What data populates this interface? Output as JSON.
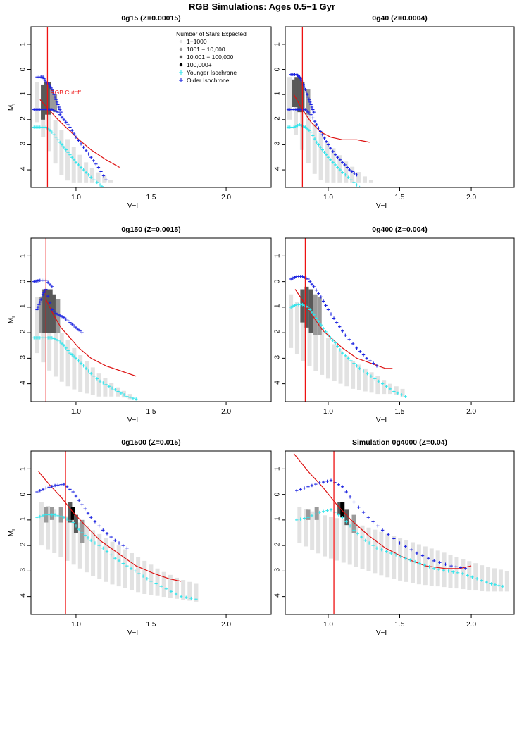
{
  "title": "RGB Simulations: Ages 0.5−1 Gyr",
  "colors": {
    "light": "#e2e2e2",
    "medium": "#9a9a9a",
    "dark": "#595959",
    "black": "#000000",
    "younger": "#33e5ec",
    "older": "#1a22e0",
    "cutoff": "#ee1111",
    "fit": "#dd1111"
  },
  "legend": {
    "title": "Number of Stars Expected",
    "items": [
      "1−1000",
      "1001 − 10,000",
      "10,001 − 100,000",
      "100,000+",
      "Younger Isochrone",
      "Older Isochrone"
    ]
  },
  "cutoff_label": "RGB Cutoff",
  "chart_data": [
    {
      "type": "scatter",
      "title": "0g15 (Z=0.00015)",
      "xlabel": "V−I",
      "ylabel": "M_I",
      "xlim": [
        0.7,
        2.3
      ],
      "ylim": [
        1.7,
        -4.7
      ],
      "xticks": [
        "1.0",
        "1.5",
        "2.0"
      ],
      "yticks": [
        "-4",
        "-3",
        "-2",
        "-1",
        "0",
        "1"
      ],
      "cutoff": 0.81,
      "band": {
        "x": [
          0.74,
          1.23
        ],
        "bottom": [
          -0.5,
          -1.2,
          -1.9,
          -2.4,
          -2.9,
          -3.3,
          -3.7,
          -4.0,
          -4.2,
          -4.4
        ],
        "top": [
          -2.1,
          -2.9,
          -3.6,
          -4.2,
          -4.5,
          -4.5,
          -4.5,
          -4.5,
          -4.5,
          -4.5
        ]
      },
      "dense": [
        [
          0.78,
          -0.6,
          -2.0,
          2
        ],
        [
          0.8,
          -0.5,
          -1.8,
          2
        ],
        [
          0.82,
          -0.5,
          -1.8,
          2
        ],
        [
          0.84,
          -0.8,
          -1.6,
          1
        ],
        [
          0.86,
          -1.0,
          -1.7,
          1
        ]
      ],
      "younger": {
        "x": [
          0.72,
          0.76,
          0.8,
          0.84,
          0.88,
          0.92,
          0.96,
          1.0,
          1.05,
          1.1,
          1.16,
          1.2
        ],
        "y": [
          -2.3,
          -2.3,
          -2.3,
          -2.5,
          -2.8,
          -3.1,
          -3.4,
          -3.7,
          -4.0,
          -4.3,
          -4.6,
          -4.8
        ]
      },
      "older": {
        "x": [
          0.72,
          0.76,
          0.8,
          0.84,
          0.88,
          0.92,
          0.96,
          1.0,
          1.05,
          1.1,
          1.15,
          1.2
        ],
        "y": [
          -1.6,
          -1.6,
          -1.6,
          -1.6,
          -1.7,
          -2.0,
          -2.3,
          -2.7,
          -3.1,
          -3.5,
          -3.9,
          -4.4
        ]
      },
      "older_lower": {
        "x": [
          0.74,
          0.78,
          0.8,
          0.82,
          0.84,
          0.86,
          0.88,
          0.9
        ],
        "y": [
          -0.3,
          -0.3,
          -0.5,
          -0.6,
          -0.8,
          -1.1,
          -1.4,
          -1.7
        ]
      },
      "fit": {
        "x": [
          0.76,
          0.82,
          0.88,
          0.95,
          1.02,
          1.1,
          1.2,
          1.29
        ],
        "y": [
          -1.2,
          -1.6,
          -2.0,
          -2.4,
          -2.8,
          -3.2,
          -3.6,
          -3.9
        ]
      },
      "legend": true
    },
    {
      "type": "scatter",
      "title": "0g40 (Z=0.0004)",
      "xlabel": "V−I",
      "ylabel": "",
      "xlim": [
        0.7,
        2.3
      ],
      "ylim": [
        1.7,
        -4.7
      ],
      "xticks": [
        "1.0",
        "1.5",
        "2.0"
      ],
      "yticks": [
        "-4",
        "-3",
        "-2",
        "-1",
        "0",
        "1"
      ],
      "cutoff": 0.82,
      "band": {
        "x": [
          0.73,
          1.3
        ],
        "bottom": [
          -0.3,
          -1.0,
          -1.7,
          -2.3,
          -2.8,
          -3.2,
          -3.6,
          -3.9,
          -4.2,
          -4.4
        ],
        "top": [
          -2.0,
          -2.9,
          -3.7,
          -4.3,
          -4.5,
          -4.5,
          -4.5,
          -4.5,
          -4.5,
          -4.5
        ]
      },
      "dense": [
        [
          0.76,
          -0.4,
          -1.5,
          2
        ],
        [
          0.78,
          -0.3,
          -1.5,
          2
        ],
        [
          0.8,
          -0.3,
          -1.7,
          2
        ],
        [
          0.82,
          -0.5,
          -1.7,
          2
        ],
        [
          0.86,
          -0.8,
          -1.8,
          1
        ]
      ],
      "younger": {
        "x": [
          0.72,
          0.76,
          0.8,
          0.84,
          0.88,
          0.92,
          0.96,
          1.0,
          1.05,
          1.1,
          1.16,
          1.22,
          1.27
        ],
        "y": [
          -2.3,
          -2.3,
          -2.2,
          -2.3,
          -2.5,
          -2.9,
          -3.2,
          -3.5,
          -3.8,
          -4.1,
          -4.4,
          -4.7,
          -4.8
        ]
      },
      "older": {
        "x": [
          0.72,
          0.76,
          0.8,
          0.84,
          0.88,
          0.92,
          0.96,
          1.0,
          1.05,
          1.1,
          1.15,
          1.2
        ],
        "y": [
          -1.6,
          -1.6,
          -1.6,
          -1.6,
          -1.8,
          -2.2,
          -2.6,
          -3.0,
          -3.4,
          -3.7,
          -4.0,
          -4.2
        ]
      },
      "older_lower": {
        "x": [
          0.74,
          0.78,
          0.8,
          0.82,
          0.84,
          0.86,
          0.88,
          0.9
        ],
        "y": [
          -0.2,
          -0.2,
          -0.3,
          -0.5,
          -0.8,
          -1.1,
          -1.4,
          -1.7
        ]
      },
      "fit": {
        "x": [
          0.76,
          0.82,
          0.88,
          0.95,
          1.02,
          1.1,
          1.2,
          1.29
        ],
        "y": [
          -1.0,
          -1.6,
          -2.1,
          -2.5,
          -2.7,
          -2.8,
          -2.8,
          -2.9
        ]
      },
      "legend": false
    },
    {
      "type": "scatter",
      "title": "0g150 (Z=0.0015)",
      "xlabel": "V−I",
      "ylabel": "M_I",
      "xlim": [
        0.7,
        2.3
      ],
      "ylim": [
        1.7,
        -4.7
      ],
      "xticks": [
        "1.0",
        "1.5",
        "2.0"
      ],
      "yticks": [
        "-4",
        "-3",
        "-2",
        "-1",
        "0",
        "1"
      ],
      "cutoff": 0.8,
      "band": {
        "x": [
          0.74,
          1.36
        ],
        "bottom": [
          -0.6,
          -1.2,
          -1.8,
          -2.3,
          -2.8,
          -3.2,
          -3.6,
          -3.9,
          -4.2,
          -4.4
        ],
        "top": [
          -2.8,
          -3.4,
          -3.8,
          -4.1,
          -4.3,
          -4.4,
          -4.5,
          -4.5,
          -4.5,
          -4.6
        ]
      },
      "dense": [
        [
          0.77,
          -0.6,
          -2.0,
          1
        ],
        [
          0.79,
          -0.3,
          -2.0,
          2
        ],
        [
          0.81,
          -0.3,
          -2.0,
          2
        ],
        [
          0.83,
          -0.3,
          -2.0,
          2
        ],
        [
          0.85,
          -0.5,
          -2.0,
          2
        ],
        [
          0.88,
          -0.7,
          -2.0,
          1
        ]
      ],
      "younger": {
        "x": [
          0.72,
          0.76,
          0.8,
          0.84,
          0.88,
          0.92,
          0.96,
          1.0,
          1.05,
          1.1,
          1.16,
          1.22,
          1.28,
          1.34,
          1.4
        ],
        "y": [
          -2.2,
          -2.2,
          -2.2,
          -2.2,
          -2.3,
          -2.5,
          -2.8,
          -3.0,
          -3.3,
          -3.6,
          -3.9,
          -4.1,
          -4.3,
          -4.5,
          -4.6
        ]
      },
      "older": {
        "x": [
          0.74,
          0.76,
          0.78,
          0.8,
          0.84,
          0.88,
          0.92,
          0.96,
          1.0,
          1.04
        ],
        "y": [
          -1.1,
          -0.8,
          -0.5,
          -0.3,
          -1.1,
          -1.3,
          -1.4,
          -1.6,
          -1.8,
          -2.0
        ]
      },
      "older_lower": {
        "x": [
          0.72,
          0.76,
          0.8,
          0.84
        ],
        "y": [
          0.0,
          0.05,
          0.05,
          -0.2
        ]
      },
      "fit": {
        "x": [
          0.8,
          0.85,
          0.9,
          0.96,
          1.02,
          1.1,
          1.2,
          1.3,
          1.4
        ],
        "y": [
          -0.7,
          -1.3,
          -1.8,
          -2.2,
          -2.6,
          -3.0,
          -3.3,
          -3.5,
          -3.7
        ]
      },
      "legend": false
    },
    {
      "type": "scatter",
      "title": "0g400 (Z=0.004)",
      "xlabel": "V−I",
      "ylabel": "",
      "xlim": [
        0.7,
        2.3
      ],
      "ylim": [
        1.7,
        -4.7
      ],
      "xticks": [
        "1.0",
        "1.5",
        "2.0"
      ],
      "yticks": [
        "-4",
        "-3",
        "-2",
        "-1",
        "0",
        "1"
      ],
      "cutoff": 0.84,
      "band": {
        "x": [
          0.74,
          1.52
        ],
        "bottom": [
          -0.5,
          -1.1,
          -1.7,
          -2.2,
          -2.7,
          -3.1,
          -3.4,
          -3.7,
          -4.0,
          -4.2
        ],
        "top": [
          -2.6,
          -3.1,
          -3.5,
          -3.8,
          -4.0,
          -4.2,
          -4.3,
          -4.4,
          -4.4,
          -4.5
        ]
      },
      "dense": [
        [
          0.82,
          -0.3,
          -1.6,
          2
        ],
        [
          0.85,
          -0.2,
          -1.8,
          2
        ],
        [
          0.88,
          -0.3,
          -2.0,
          2
        ],
        [
          0.91,
          -0.5,
          -2.1,
          1
        ],
        [
          0.94,
          -0.6,
          -2.1,
          1
        ]
      ],
      "younger": {
        "x": [
          0.74,
          0.78,
          0.82,
          0.86,
          0.9,
          0.95,
          1.0,
          1.05,
          1.1,
          1.16,
          1.22,
          1.3,
          1.38,
          1.46,
          1.54
        ],
        "y": [
          -1.0,
          -0.9,
          -0.9,
          -1.0,
          -1.3,
          -1.7,
          -2.1,
          -2.4,
          -2.8,
          -3.1,
          -3.4,
          -3.7,
          -4.0,
          -4.3,
          -4.5
        ]
      },
      "older": {
        "x": [
          0.74,
          0.78,
          0.82,
          0.86,
          0.9,
          0.95,
          1.0,
          1.06,
          1.12,
          1.2,
          1.27,
          1.34
        ],
        "y": [
          0.1,
          0.2,
          0.2,
          0.1,
          -0.2,
          -0.6,
          -1.1,
          -1.6,
          -2.1,
          -2.6,
          -3.0,
          -3.3
        ]
      },
      "older_lower": {
        "x": [],
        "y": []
      },
      "fit": {
        "x": [
          0.77,
          0.84,
          0.9,
          0.96,
          1.02,
          1.1,
          1.2,
          1.3,
          1.4,
          1.45
        ],
        "y": [
          -0.3,
          -0.9,
          -1.4,
          -1.9,
          -2.2,
          -2.6,
          -3.0,
          -3.2,
          -3.4,
          -3.4
        ]
      },
      "legend": false
    },
    {
      "type": "scatter",
      "title": "0g1500 (Z=0.015)",
      "xlabel": "V−I",
      "ylabel": "M_I",
      "xlim": [
        0.7,
        2.3
      ],
      "ylim": [
        1.7,
        -4.7
      ],
      "xticks": [
        "1.0",
        "1.5",
        "2.0"
      ],
      "yticks": [
        "-4",
        "-3",
        "-2",
        "-1",
        "0",
        "1"
      ],
      "cutoff": 0.93,
      "band": {
        "x": [
          0.77,
          1.8
        ],
        "bottom": [
          -0.3,
          -0.7,
          -1.0,
          -1.4,
          -1.8,
          -2.2,
          -2.6,
          -3.0,
          -3.3,
          -3.5
        ],
        "top": [
          -2.0,
          -2.4,
          -2.8,
          -3.2,
          -3.5,
          -3.7,
          -3.9,
          -4.0,
          -4.1,
          -4.2
        ]
      },
      "dense": [
        [
          0.8,
          -0.5,
          -1.1,
          1
        ],
        [
          0.84,
          -0.5,
          -1.0,
          1
        ],
        [
          0.9,
          -0.5,
          -1.1,
          1
        ],
        [
          0.96,
          -0.3,
          -1.1,
          2
        ],
        [
          0.98,
          -0.5,
          -1.0,
          3
        ],
        [
          1.0,
          -0.8,
          -1.5,
          2
        ],
        [
          1.04,
          -1.0,
          -1.9,
          1
        ]
      ],
      "younger": {
        "x": [
          0.74,
          0.8,
          0.86,
          0.92,
          0.98,
          1.04,
          1.1,
          1.18,
          1.26,
          1.34,
          1.42,
          1.5,
          1.6,
          1.7,
          1.8
        ],
        "y": [
          -0.9,
          -0.8,
          -0.8,
          -0.9,
          -1.1,
          -1.5,
          -1.8,
          -2.1,
          -2.5,
          -2.8,
          -3.1,
          -3.4,
          -3.7,
          -4.0,
          -4.1
        ]
      },
      "older": {
        "x": [
          0.74,
          0.8,
          0.86,
          0.92,
          0.98,
          1.04,
          1.1,
          1.18,
          1.26,
          1.34
        ],
        "y": [
          0.1,
          0.25,
          0.35,
          0.4,
          0.1,
          -0.4,
          -0.9,
          -1.4,
          -1.8,
          -2.1
        ]
      },
      "older_lower": {
        "x": [],
        "y": []
      },
      "fit": {
        "x": [
          0.75,
          0.82,
          0.9,
          0.98,
          1.06,
          1.16,
          1.28,
          1.4,
          1.52,
          1.62,
          1.7
        ],
        "y": [
          0.9,
          0.4,
          -0.1,
          -0.7,
          -1.2,
          -1.8,
          -2.3,
          -2.8,
          -3.1,
          -3.3,
          -3.4
        ]
      },
      "legend": false
    },
    {
      "type": "scatter",
      "title": "Simulation 0g4000 (Z=0.04)",
      "xlabel": "V−I",
      "ylabel": "",
      "xlim": [
        0.7,
        2.3
      ],
      "ylim": [
        1.7,
        -4.7
      ],
      "xticks": [
        "1.0",
        "1.5",
        "2.0"
      ],
      "yticks": [
        "-4",
        "-3",
        "-2",
        "-1",
        "0",
        "1"
      ],
      "cutoff": 1.04,
      "band": {
        "x": [
          0.8,
          2.25
        ],
        "bottom": [
          -0.5,
          -0.8,
          -1.0,
          -1.3,
          -1.6,
          -1.9,
          -2.2,
          -2.5,
          -2.8,
          -3.0
        ],
        "top": [
          -1.9,
          -2.4,
          -2.7,
          -3.0,
          -3.3,
          -3.5,
          -3.6,
          -3.7,
          -3.8,
          -3.8
        ]
      },
      "dense": [
        [
          0.86,
          -0.6,
          -1.0,
          1
        ],
        [
          0.92,
          -0.5,
          -1.0,
          1
        ],
        [
          1.08,
          -0.3,
          -0.8,
          2
        ],
        [
          1.1,
          -0.3,
          -0.9,
          3
        ],
        [
          1.13,
          -0.6,
          -1.2,
          2
        ],
        [
          1.18,
          -0.8,
          -1.5,
          1
        ]
      ],
      "younger": {
        "x": [
          0.78,
          0.86,
          0.94,
          1.02,
          1.1,
          1.18,
          1.26,
          1.34,
          1.44,
          1.54,
          1.64,
          1.74,
          1.84,
          1.94,
          2.04,
          2.14,
          2.22
        ],
        "y": [
          -1.0,
          -0.9,
          -0.7,
          -0.6,
          -0.9,
          -1.4,
          -1.8,
          -2.1,
          -2.3,
          -2.5,
          -2.7,
          -2.9,
          -3.0,
          -3.1,
          -3.3,
          -3.5,
          -3.6
        ]
      },
      "older": {
        "x": [
          0.78,
          0.86,
          0.94,
          1.02,
          1.1,
          1.18,
          1.28,
          1.38,
          1.5,
          1.62,
          1.74,
          1.86,
          1.96
        ],
        "y": [
          0.15,
          0.3,
          0.45,
          0.55,
          0.3,
          -0.3,
          -0.9,
          -1.4,
          -1.9,
          -2.3,
          -2.6,
          -2.8,
          -2.9
        ]
      },
      "older_lower": {
        "x": [],
        "y": []
      },
      "fit": {
        "x": [
          0.76,
          0.86,
          0.96,
          1.06,
          1.16,
          1.28,
          1.4,
          1.54,
          1.68,
          1.82,
          1.92,
          2.0
        ],
        "y": [
          1.6,
          0.9,
          0.3,
          -0.4,
          -1.0,
          -1.6,
          -2.1,
          -2.5,
          -2.8,
          -2.9,
          -2.9,
          -2.8
        ]
      },
      "legend": false
    }
  ]
}
